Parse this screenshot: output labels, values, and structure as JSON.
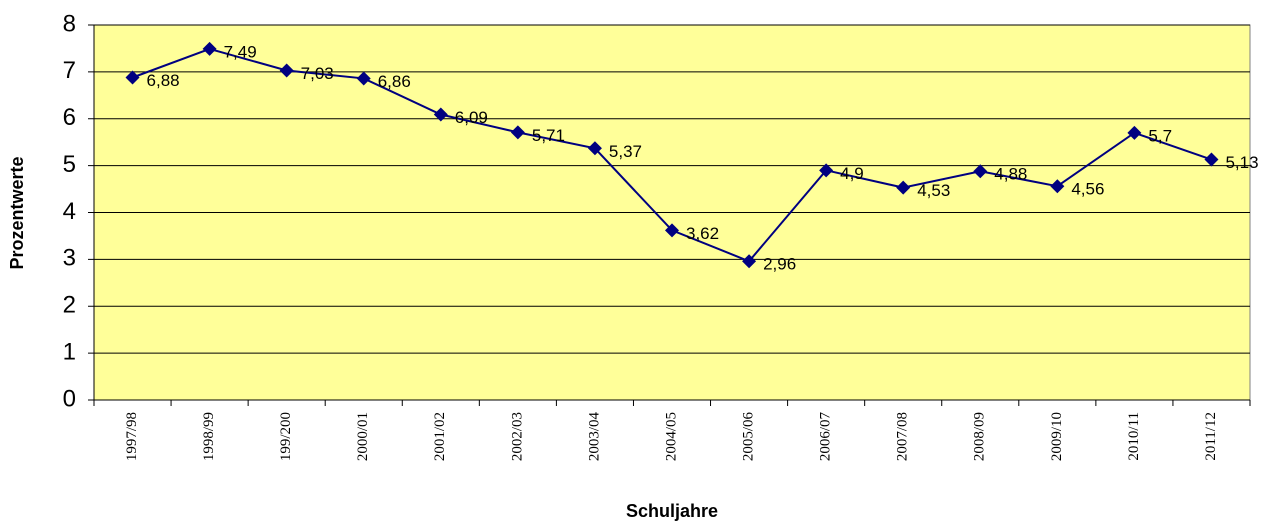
{
  "chart_data": {
    "type": "line",
    "x_label": "Schuljahre",
    "y_label": "Prozentwerte",
    "categories": [
      "1997/98",
      "1998/99",
      "199/200",
      "2000/01",
      "2001/02",
      "2002/03",
      "2003/04",
      "2004/05",
      "2005/06",
      "2006/07",
      "2007/08",
      "2008/09",
      "2009/10",
      "2010/11",
      "2011/12"
    ],
    "series": [
      {
        "name": "Prozentwerte",
        "color": "#000080",
        "values": [
          6.88,
          7.49,
          7.03,
          6.86,
          6.09,
          5.71,
          5.37,
          3.62,
          2.96,
          4.9,
          4.53,
          4.88,
          4.56,
          5.7,
          5.13
        ],
        "value_labels": [
          "6,88",
          "7,49",
          "7,03",
          "6,86",
          "6,09",
          "5,71",
          "5,37",
          "3,62",
          "2,96",
          "4,9",
          "4,53",
          "4,88",
          "4,56",
          "5,7",
          "5,13"
        ]
      }
    ],
    "ylim": [
      0,
      8
    ],
    "yticks": [
      0,
      1,
      2,
      3,
      4,
      5,
      6,
      7,
      8
    ],
    "grid": true,
    "plot_background": "#ffff99"
  }
}
